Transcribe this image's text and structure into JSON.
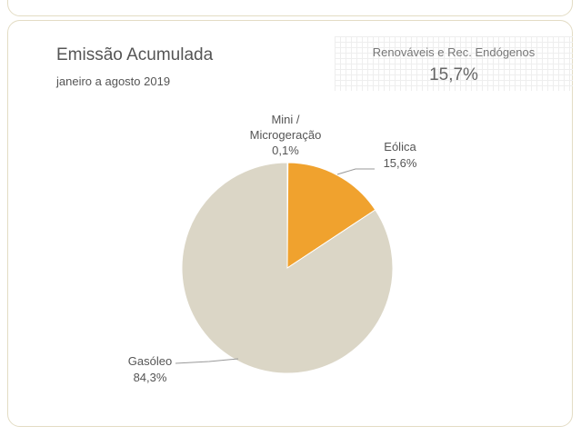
{
  "chart_data": {
    "type": "pie",
    "title": "Emissão Acumulada",
    "subtitle": "janeiro a agosto 2019",
    "annotation": {
      "label": "Renováveis e Rec. Endógenos",
      "value": 15.7,
      "value_label": "15,7%"
    },
    "categories": [
      "Mini / Microgeração",
      "Eólica",
      "Gasóleo"
    ],
    "values": [
      0.1,
      15.6,
      84.3
    ],
    "value_labels": [
      "0,1%",
      "15,6%",
      "84,3%"
    ],
    "colors": [
      "#c8a55a",
      "#f0a22e",
      "#dbd6c6"
    ]
  }
}
